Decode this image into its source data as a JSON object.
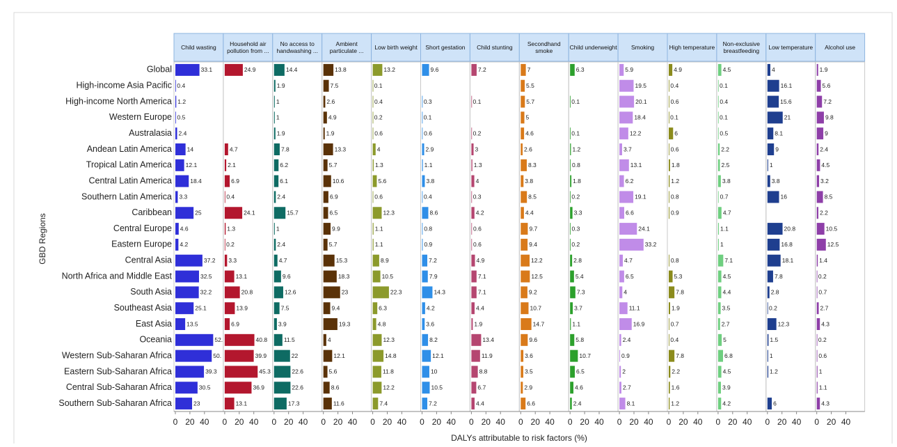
{
  "chart_data": {
    "type": "bar",
    "orientation": "horizontal",
    "y_label": "GBD Regions",
    "x_label": "DALYs attributable to risk factors (%)",
    "categories": [
      "Global",
      "High-income Asia Pacific",
      "High-income North America",
      "Western Europe",
      "Australasia",
      "Andean Latin America",
      "Tropical Latin America",
      "Central Latin America",
      "Southern Latin America",
      "Caribbean",
      "Central Europe",
      "Eastern Europe",
      "Central Asia",
      "North Africa and Middle East",
      "South Asia",
      "Southeast Asia",
      "East Asia",
      "Oceania",
      "Western Sub-Saharan Africa",
      "Eastern Sub-Saharan Africa",
      "Central Sub-Saharan Africa",
      "Southern Sub-Saharan Africa"
    ],
    "xlim": [
      0,
      64
    ],
    "xticks": [
      0,
      20,
      40
    ],
    "series": [
      {
        "name": "Child wasting",
        "color": "#2f2fd8",
        "values": [
          33.1,
          0.4,
          1.2,
          0.5,
          2.4,
          14,
          12.1,
          18.4,
          3.3,
          25,
          4.6,
          4.2,
          37.2,
          32.5,
          32.2,
          25.1,
          13.5,
          52,
          50,
          39.3,
          30.5,
          23
        ],
        "value_labels": [
          "33.1",
          "0.4",
          "1.2",
          "0.5",
          "2.4",
          "14",
          "12.1",
          "18.4",
          "3.3",
          "25",
          "4.6",
          "4.2",
          "37.2",
          "32.5",
          "32.2",
          "25.1",
          "13.5",
          "52.",
          "50.",
          "39.3",
          "30.5",
          "23"
        ]
      },
      {
        "name": "Household air pollution from ...",
        "color": "#b3172e",
        "values": [
          24.9,
          null,
          null,
          null,
          null,
          4.7,
          2.1,
          6.9,
          0.4,
          24.1,
          1.3,
          0.2,
          3.3,
          13.1,
          20.8,
          13.9,
          6.9,
          40.8,
          39.9,
          45.3,
          36.9,
          13.1
        ]
      },
      {
        "name": "No access to handwashing ...",
        "color": "#0e6b63",
        "values": [
          14.4,
          1.9,
          1,
          1,
          1.9,
          7.8,
          6.2,
          6.1,
          2.4,
          15.7,
          1,
          2.4,
          4.7,
          9.6,
          12.6,
          7.5,
          3.9,
          11.5,
          22,
          22.6,
          22.6,
          17.3
        ]
      },
      {
        "name": "Ambient particulate ...",
        "color": "#5a3208",
        "values": [
          13.8,
          7.5,
          2.6,
          4.9,
          1.9,
          13.3,
          5.7,
          10.6,
          6.9,
          6.5,
          9.9,
          5.7,
          15.3,
          18.3,
          23,
          9.4,
          19.3,
          4,
          12.1,
          5.6,
          8.6,
          11.6
        ]
      },
      {
        "name": "Low birth weight",
        "color": "#8c9a2c",
        "values": [
          13.2,
          0.1,
          0.4,
          0.2,
          0.6,
          4,
          1.3,
          5.6,
          0.6,
          12.3,
          1.1,
          1.1,
          8.9,
          10.5,
          22.3,
          6.3,
          4.8,
          12.3,
          14.8,
          11.8,
          12.2,
          7.4
        ]
      },
      {
        "name": "Short gestation",
        "color": "#2f8fe8",
        "values": [
          9.6,
          null,
          0.3,
          0.1,
          0.6,
          2.9,
          1.1,
          3.8,
          0.4,
          8.6,
          0.8,
          0.9,
          7.2,
          7.9,
          14.3,
          4.2,
          3.6,
          8.2,
          12.1,
          10,
          10.5,
          7.2
        ]
      },
      {
        "name": "Child stunting",
        "color": "#b54670",
        "values": [
          7.2,
          null,
          0.1,
          null,
          0.2,
          3,
          1.3,
          4,
          0.3,
          4.2,
          0.6,
          0.6,
          4.9,
          7.1,
          7.1,
          4.4,
          1.9,
          13.4,
          11.9,
          8.8,
          6.7,
          4.4
        ]
      },
      {
        "name": "Secondhand smoke",
        "color": "#d97a1a",
        "values": [
          7,
          5.5,
          5.7,
          5,
          4.6,
          2.6,
          8.3,
          3.8,
          8.5,
          4.4,
          9.7,
          9.4,
          12.2,
          12.5,
          9.2,
          10.7,
          14.7,
          9.6,
          3.6,
          3.5,
          2.9,
          6.6
        ]
      },
      {
        "name": "Child underweight",
        "color": "#2ca02c",
        "values": [
          6.3,
          null,
          0.1,
          null,
          0.1,
          1.2,
          0.8,
          1.8,
          0.2,
          3.3,
          0.3,
          0.2,
          2.8,
          5.4,
          7.3,
          3.7,
          1.1,
          5.8,
          10.7,
          6.5,
          4.6,
          2.4
        ]
      },
      {
        "name": "Smoking",
        "color": "#c08ce8",
        "values": [
          5.9,
          19.5,
          20.1,
          18.4,
          12.2,
          3.7,
          13.1,
          6.2,
          19.1,
          6.6,
          24.1,
          33.2,
          4.7,
          6.5,
          4,
          11.1,
          16.9,
          2.4,
          0.9,
          2,
          2.7,
          8.1
        ]
      },
      {
        "name": "High temperature",
        "color": "#8b8b1c",
        "values": [
          4.9,
          0.4,
          0.6,
          0.1,
          6,
          0.6,
          1.8,
          1.2,
          0.8,
          0.9,
          null,
          null,
          0.8,
          5.3,
          7.8,
          1.9,
          0.7,
          0.4,
          7.8,
          2.2,
          1.6,
          1.2
        ]
      },
      {
        "name": "Non-exclusive breastfeeding",
        "color": "#6fcf80",
        "values": [
          4.5,
          0.1,
          0.4,
          0.1,
          0.5,
          2.2,
          2.5,
          3.8,
          0.7,
          4.7,
          1.1,
          1,
          7.1,
          4.5,
          4.4,
          3.5,
          2.7,
          5,
          6.8,
          4.5,
          3.9,
          4.2
        ]
      },
      {
        "name": "Low temperature",
        "color": "#1f3f8f",
        "values": [
          4,
          16.1,
          15.6,
          21,
          8.1,
          9,
          1,
          3.8,
          16,
          null,
          20.8,
          16.8,
          18.1,
          7.8,
          2.8,
          0.2,
          12.3,
          1.5,
          1,
          1.2,
          null,
          6
        ]
      },
      {
        "name": "Alcohol use",
        "color": "#8e3fa8",
        "values": [
          1.9,
          5.6,
          7.2,
          9.8,
          9,
          2.4,
          4.5,
          3.2,
          8.5,
          2.2,
          10.5,
          12.5,
          1.4,
          0.2,
          0.7,
          2.7,
          4.3,
          0.2,
          0.6,
          1,
          1.1,
          4.3
        ]
      }
    ]
  }
}
